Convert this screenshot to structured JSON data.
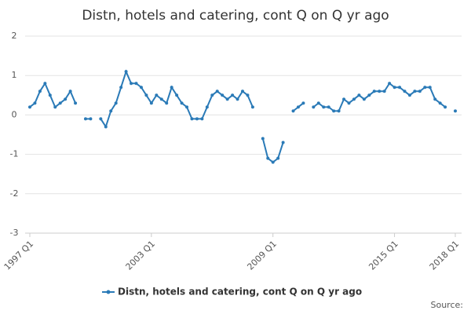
{
  "chart_data": {
    "type": "line",
    "title": "Distn, hotels and catering, cont Q on Q yr ago",
    "source": "Source:",
    "categories": [
      "1997 Q1",
      null,
      null,
      null,
      null,
      null,
      null,
      null,
      null,
      null,
      null,
      null,
      null,
      null,
      null,
      null,
      null,
      null,
      null,
      null,
      null,
      null,
      null,
      null,
      "2003 Q1",
      null,
      null,
      null,
      null,
      null,
      null,
      null,
      null,
      null,
      null,
      null,
      null,
      null,
      null,
      null,
      null,
      null,
      null,
      null,
      null,
      null,
      null,
      null,
      "2009 Q1",
      null,
      null,
      null,
      null,
      null,
      null,
      null,
      null,
      null,
      null,
      null,
      null,
      null,
      null,
      null,
      null,
      null,
      null,
      null,
      null,
      null,
      null,
      null,
      "2015 Q1",
      null,
      null,
      null,
      null,
      null,
      null,
      null,
      null,
      null,
      null,
      null,
      "2018 Q1"
    ],
    "series": [
      {
        "name": "Distn, hotels and catering, cont Q on Q yr ago",
        "color": "#2a7ab7",
        "values": [
          0.2,
          0.3,
          0.6,
          0.8,
          0.5,
          0.2,
          0.3,
          0.4,
          0.6,
          0.3,
          null,
          -0.1,
          -0.1,
          null,
          -0.1,
          -0.3,
          0.1,
          0.3,
          0.7,
          1.1,
          0.8,
          0.8,
          0.7,
          0.5,
          0.3,
          0.5,
          0.4,
          0.3,
          0.7,
          0.5,
          0.3,
          0.2,
          -0.1,
          -0.1,
          -0.1,
          0.2,
          0.5,
          0.6,
          0.5,
          0.4,
          0.5,
          0.4,
          0.6,
          0.5,
          0.2,
          null,
          -0.6,
          -1.1,
          -1.2,
          -1.1,
          -0.7,
          null,
          0.1,
          0.2,
          0.3,
          null,
          0.2,
          0.3,
          0.2,
          0.2,
          0.1,
          0.1,
          0.4,
          0.3,
          0.4,
          0.5,
          0.4,
          0.5,
          0.6,
          0.6,
          0.6,
          0.8,
          0.7,
          0.7,
          0.6,
          0.5,
          0.6,
          0.6,
          0.7,
          0.7,
          0.4,
          0.3,
          0.2,
          null,
          0.1
        ]
      }
    ],
    "ylim": [
      -3,
      2
    ],
    "yticks": [
      -3,
      -2,
      -1,
      0,
      1,
      2
    ],
    "grid": true
  }
}
